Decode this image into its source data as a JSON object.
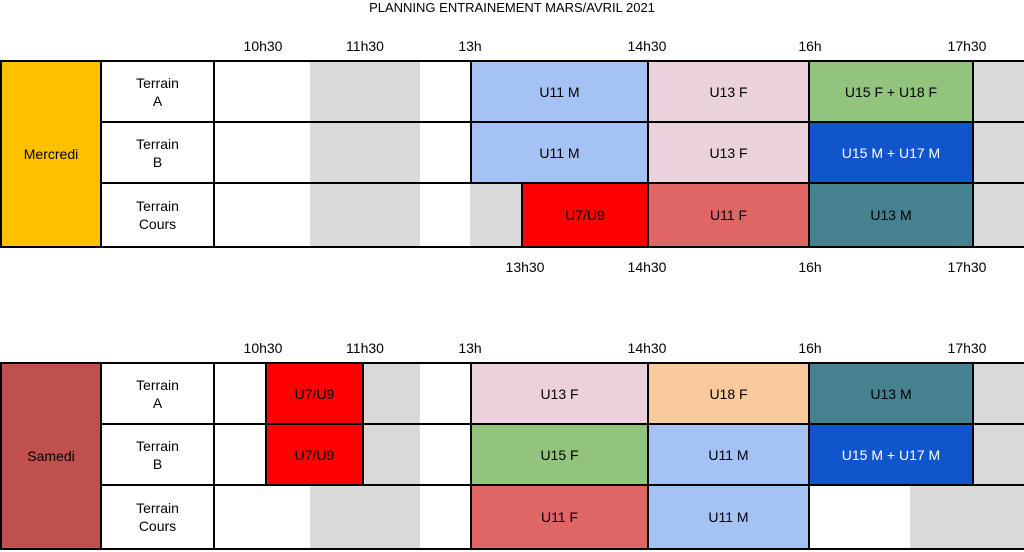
{
  "title": "PLANNING ENTRAINEMENT MARS/AVRIL 2021",
  "sections": [
    {
      "day": "Mercredi",
      "times_top": [
        "10h30",
        "11h30",
        "13h",
        "14h30",
        "16h",
        "17h30"
      ],
      "times_bottom": [
        "13h30",
        "14h30",
        "16h",
        "17h30"
      ],
      "rows": [
        {
          "terrain": [
            "Terrain",
            "A"
          ],
          "slots": [
            "U11 M",
            "U13 F",
            "U15 F + U18 F"
          ]
        },
        {
          "terrain": [
            "Terrain",
            "B"
          ],
          "slots": [
            "U11 M",
            "U13 F",
            "U15 M + U17 M"
          ]
        },
        {
          "terrain": [
            "Terrain",
            "Cours"
          ],
          "slots": [
            "U7/U9",
            "U11 F",
            "U13 M"
          ]
        }
      ]
    },
    {
      "day": "Samedi",
      "times_top": [
        "10h30",
        "11h30",
        "13h",
        "14h30",
        "16h",
        "17h30"
      ],
      "rows": [
        {
          "terrain": [
            "Terrain",
            "A"
          ],
          "slots": [
            "U7/U9",
            "U13 F",
            "U18 F",
            "U13 M"
          ]
        },
        {
          "terrain": [
            "Terrain",
            "B"
          ],
          "slots": [
            "U7/U9",
            "U15 F",
            "U11 M",
            "U15 M + U17 M"
          ]
        },
        {
          "terrain": [
            "Terrain",
            "Cours"
          ],
          "slots": [
            "U11 F",
            "U11 M"
          ]
        }
      ]
    }
  ]
}
